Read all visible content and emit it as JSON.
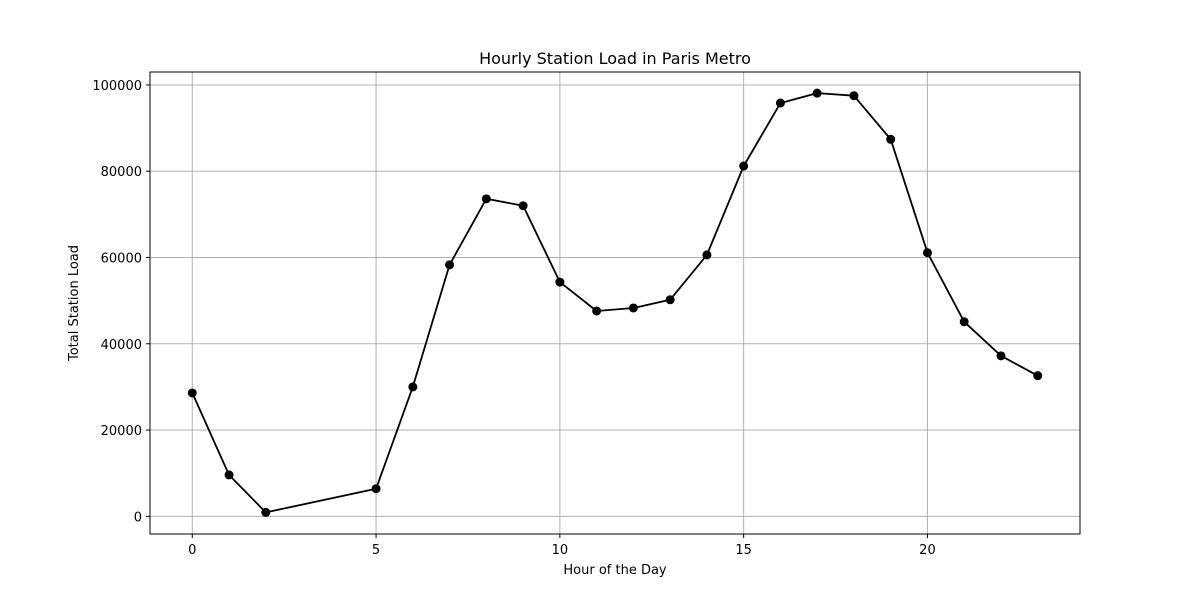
{
  "chart_data": {
    "type": "line",
    "title": "Hourly Station Load in Paris Metro",
    "xlabel": "Hour of the Day",
    "ylabel": "Total Station Load",
    "x": [
      0,
      1,
      2,
      5,
      6,
      7,
      8,
      9,
      10,
      11,
      12,
      13,
      14,
      15,
      16,
      17,
      18,
      19,
      20,
      21,
      22,
      23
    ],
    "series": [
      {
        "values": [
          28600,
          9600,
          900,
          6400,
          30000,
          58300,
          73600,
          72000,
          54300,
          47600,
          48300,
          50200,
          60600,
          81200,
          95800,
          98100,
          97500,
          87400,
          61100,
          45100,
          37200,
          32600
        ]
      }
    ],
    "xlim": [
      -1.15,
      24.15
    ],
    "ylim": [
      -4100,
      103000
    ],
    "xticks": [
      0,
      5,
      10,
      15,
      20
    ],
    "xtick_labels": [
      "0",
      "5",
      "10",
      "15",
      "20"
    ],
    "yticks": [
      0,
      20000,
      40000,
      60000,
      80000,
      100000
    ],
    "ytick_labels": [
      "0",
      "20000",
      "40000",
      "60000",
      "80000",
      "100000"
    ],
    "grid": true,
    "colors": {
      "line": "#000000",
      "marker": "#000000",
      "grid": "#b0b0b0"
    }
  }
}
